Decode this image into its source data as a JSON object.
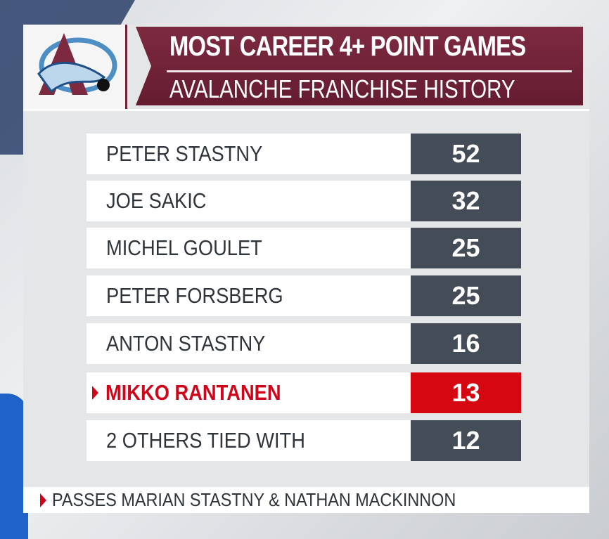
{
  "header": {
    "title": "MOST CAREER 4+ POINT GAMES",
    "subtitle": "AVALANCHE FRANCHISE HISTORY",
    "logo": "colorado-avalanche-logo"
  },
  "rows": [
    {
      "name": "PETER STASTNY",
      "value": "52"
    },
    {
      "name": "JOE SAKIC",
      "value": "32"
    },
    {
      "name": "MICHEL GOULET",
      "value": "25"
    },
    {
      "name": "PETER FORSBERG",
      "value": "25"
    },
    {
      "name": "ANTON STASTNY",
      "value": "16"
    },
    {
      "name": "MIKKO RANTANEN",
      "value": "13",
      "highlight": true
    },
    {
      "name": "2 OTHERS TIED WITH",
      "value": "12"
    }
  ],
  "footer": {
    "note": "PASSES MARIAN STASTNY & NATHAN MACKINNON"
  },
  "colors": {
    "maroon": "#6f2136",
    "highlight": "#d50811",
    "value_bg": "#444c57"
  }
}
